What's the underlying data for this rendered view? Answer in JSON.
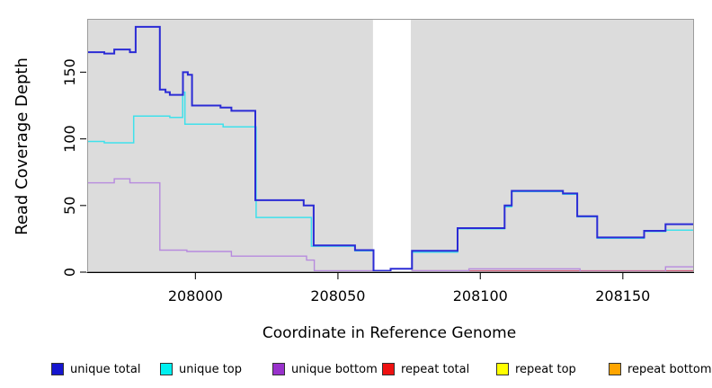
{
  "figure_bg": "#ffffff",
  "chart_data": {
    "type": "line",
    "subtype": "step-coverage",
    "title": "",
    "xlabel": "Coordinate in Reference Genome",
    "ylabel": "Read Coverage Depth",
    "xlim": [
      207962,
      208175
    ],
    "ylim": [
      0,
      190
    ],
    "x_ticks": [
      208000,
      208050,
      208100,
      208150
    ],
    "y_ticks": [
      0,
      50,
      100,
      150
    ],
    "grid": false,
    "plot_bg": "#dcdcdc",
    "border_color": "#9c9c9c",
    "axis_color": "#000000",
    "masked_region": {
      "from": 208062.3,
      "to": 208075.6,
      "color": "#ffffff"
    },
    "legend_position": "bottom",
    "draw_order": [
      4,
      3,
      5,
      2,
      1,
      0
    ],
    "series": [
      {
        "name": "unique total",
        "color": "#2b2bd5",
        "width": 2,
        "steps": [
          [
            207962,
            165
          ],
          [
            207968,
            164
          ],
          [
            207971.5,
            167
          ],
          [
            207977,
            165
          ],
          [
            207979,
            184
          ],
          [
            207987.5,
            137
          ],
          [
            207989.5,
            135
          ],
          [
            207991,
            133
          ],
          [
            207995.6,
            150
          ],
          [
            207997.3,
            148
          ],
          [
            207998.8,
            125
          ],
          [
            208008.8,
            123.5
          ],
          [
            208012.6,
            121
          ],
          [
            208021,
            54
          ],
          [
            208038,
            50
          ],
          [
            208041.5,
            20
          ],
          [
            208056,
            16.5
          ],
          [
            208062.5,
            1
          ],
          [
            208068.5,
            2.5
          ],
          [
            208076,
            16
          ],
          [
            208092,
            33
          ],
          [
            208108.5,
            50
          ],
          [
            208111,
            61
          ],
          [
            208129,
            59
          ],
          [
            208134,
            42
          ],
          [
            208141,
            26
          ],
          [
            208157.5,
            31
          ],
          [
            208165,
            36
          ]
        ]
      },
      {
        "name": "unique top",
        "color": "#3fe1eb",
        "width": 1.5,
        "steps": [
          [
            207962,
            98
          ],
          [
            207968,
            97
          ],
          [
            207978.3,
            117
          ],
          [
            207991,
            116
          ],
          [
            207995.5,
            135
          ],
          [
            207996.3,
            111
          ],
          [
            208009.7,
            109
          ],
          [
            208021.3,
            41
          ],
          [
            208040.7,
            19.5
          ],
          [
            208056,
            16
          ],
          [
            208062.5,
            null
          ],
          [
            208076,
            15
          ],
          [
            208092,
            32.5
          ],
          [
            208108.5,
            49
          ],
          [
            208111,
            60.5
          ],
          [
            208129,
            58.5
          ],
          [
            208134,
            41.5
          ],
          [
            208141,
            25.5
          ],
          [
            208157.5,
            30.5
          ],
          [
            208165,
            31.5
          ]
        ]
      },
      {
        "name": "unique bottom",
        "color": "#b78ade",
        "width": 1.4,
        "steps": [
          [
            207962,
            67
          ],
          [
            207971.5,
            70
          ],
          [
            207977,
            67
          ],
          [
            207987.5,
            16.5
          ],
          [
            207997,
            15.5
          ],
          [
            208012.6,
            12
          ],
          [
            208039,
            9
          ],
          [
            208041.7,
            1
          ],
          [
            208062.5,
            null
          ],
          [
            208076,
            1
          ],
          [
            208096,
            2.5
          ],
          [
            208135,
            0.5
          ],
          [
            208165,
            4
          ]
        ]
      },
      {
        "name": "repeat total",
        "color": "#cf5577",
        "width": 1.3,
        "steps": [
          [
            207962,
            0
          ],
          [
            208062.5,
            null
          ],
          [
            208076,
            1
          ]
        ]
      },
      {
        "name": "repeat top",
        "color": "#ffff00",
        "width": 1.3,
        "steps": [
          [
            207962,
            0
          ],
          [
            208062.5,
            null
          ],
          [
            208076,
            0
          ]
        ]
      },
      {
        "name": "repeat bottom",
        "color": "#ff9e1b",
        "width": 1.8,
        "steps": [
          [
            207962,
            0
          ],
          [
            208062.5,
            null
          ],
          [
            208076,
            0
          ]
        ]
      }
    ]
  },
  "legend": {
    "items": [
      {
        "label": "unique total",
        "color": "#1616cf"
      },
      {
        "label": "unique top",
        "color": "#00f0f0"
      },
      {
        "label": "unique bottom",
        "color": "#9932cc"
      },
      {
        "label": "repeat total",
        "color": "#ee1111"
      },
      {
        "label": "repeat top",
        "color": "#ffff00"
      },
      {
        "label": "repeat bottom",
        "color": "#ffa500"
      }
    ]
  }
}
